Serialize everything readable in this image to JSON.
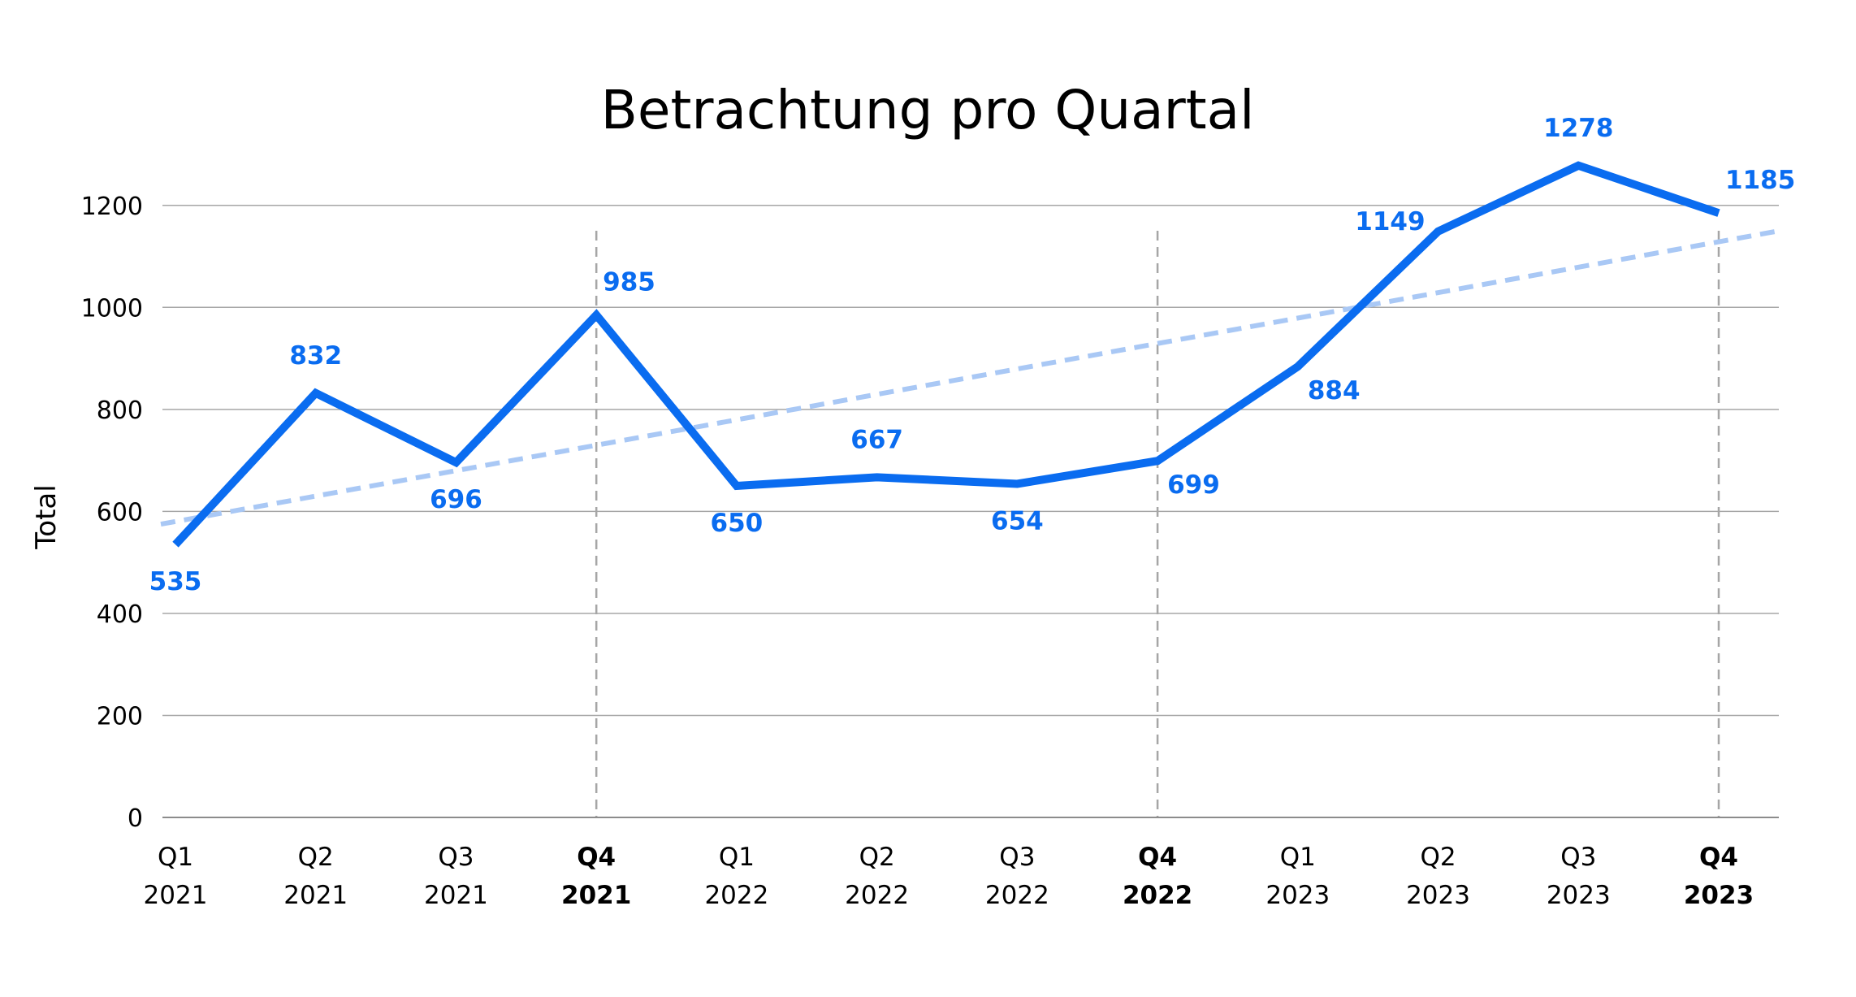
{
  "chart_data": {
    "type": "line",
    "title": "Betrachtung pro Quartal",
    "xlabel": "",
    "ylabel": "Total",
    "ylim": [
      0,
      1300
    ],
    "yticks": [
      0,
      200,
      400,
      600,
      800,
      1000,
      1200
    ],
    "grid": "horizontal",
    "categories": [
      {
        "quarter": "Q1",
        "year": "2021",
        "bold": false
      },
      {
        "quarter": "Q2",
        "year": "2021",
        "bold": false
      },
      {
        "quarter": "Q3",
        "year": "2021",
        "bold": false
      },
      {
        "quarter": "Q4",
        "year": "2021",
        "bold": true
      },
      {
        "quarter": "Q1",
        "year": "2022",
        "bold": false
      },
      {
        "quarter": "Q2",
        "year": "2022",
        "bold": false
      },
      {
        "quarter": "Q3",
        "year": "2022",
        "bold": false
      },
      {
        "quarter": "Q4",
        "year": "2022",
        "bold": true
      },
      {
        "quarter": "Q1",
        "year": "2023",
        "bold": false
      },
      {
        "quarter": "Q2",
        "year": "2023",
        "bold": false
      },
      {
        "quarter": "Q3",
        "year": "2023",
        "bold": false
      },
      {
        "quarter": "Q4",
        "year": "2023",
        "bold": true
      }
    ],
    "series": [
      {
        "values": [
          535,
          832,
          696,
          985,
          650,
          667,
          654,
          699,
          884,
          1149,
          1278,
          1185
        ],
        "color": "#0a6cf0",
        "data_labels": [
          "535",
          "832",
          "696",
          "985",
          "650",
          "667",
          "654",
          "699",
          "884",
          "1149",
          "1278",
          "1185"
        ],
        "label_positions": [
          "below",
          "above",
          "below",
          "above-right",
          "below",
          "above",
          "below",
          "below-right",
          "below-right",
          "left",
          "above",
          "above-right"
        ]
      }
    ],
    "trendline": {
      "style": "dashed",
      "color": "#a9c8f5",
      "start_value": 575,
      "end_value": 1150
    },
    "year_separators": [
      "Q4 2021",
      "Q4 2022",
      "Q4 2023"
    ],
    "separator_color": "#a6a6a6",
    "grid_color": "#a6a6a6",
    "axis_color": "#8c8c8c",
    "label_color": "#0a6cf0"
  }
}
